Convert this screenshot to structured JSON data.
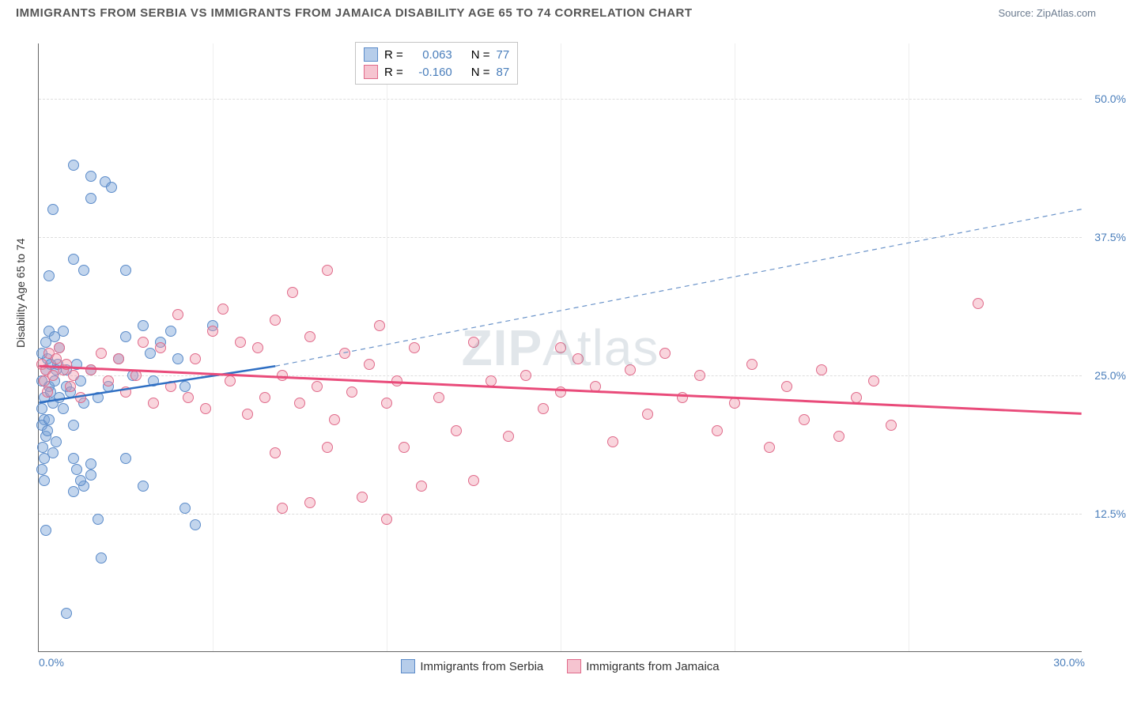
{
  "title": "IMMIGRANTS FROM SERBIA VS IMMIGRANTS FROM JAMAICA DISABILITY AGE 65 TO 74 CORRELATION CHART",
  "source_label": "Source: ZipAtlas.com",
  "yaxis_label": "Disability Age 65 to 74",
  "watermark_zip": "ZIP",
  "watermark_atlas": "Atlas",
  "chart": {
    "type": "scatter",
    "xlim": [
      0,
      30
    ],
    "ylim": [
      0,
      55
    ],
    "background_color": "#ffffff",
    "grid_color": "#dddddd",
    "ygrid_values": [
      12.5,
      25.0,
      37.5,
      50.0
    ],
    "ygrid_labels": [
      "12.5%",
      "25.0%",
      "37.5%",
      "50.0%"
    ],
    "xgrid_values": [
      5,
      10,
      15,
      20,
      25
    ],
    "xtick_left_label": "0.0%",
    "xtick_right_label": "30.0%",
    "series": [
      {
        "name": "Immigrants from Serbia",
        "fill_color": "rgba(119,162,216,0.45)",
        "stroke_color": "#5b8bc9",
        "swatch_fill": "#b6cdea",
        "swatch_border": "#5b8bc9",
        "R_label": "0.063",
        "N_label": "77",
        "trend": {
          "x1": 0,
          "y1": 22.5,
          "x2": 6.8,
          "y2": 25.8,
          "color": "#2f6fc3",
          "width": 2.5,
          "dash": "none"
        },
        "trend_ext": {
          "x1": 6.8,
          "y1": 25.8,
          "x2": 30,
          "y2": 40.0,
          "color": "#6a93c9",
          "width": 1.2,
          "dash": "6 5"
        },
        "points": [
          [
            0.1,
            24.5
          ],
          [
            0.15,
            23.0
          ],
          [
            0.2,
            25.5
          ],
          [
            0.1,
            22.0
          ],
          [
            0.25,
            26.5
          ],
          [
            0.15,
            21.0
          ],
          [
            0.3,
            24.0
          ],
          [
            0.1,
            20.5
          ],
          [
            0.2,
            19.5
          ],
          [
            0.35,
            23.5
          ],
          [
            0.12,
            18.5
          ],
          [
            0.25,
            20.0
          ],
          [
            0.4,
            22.5
          ],
          [
            0.15,
            17.5
          ],
          [
            0.3,
            21.0
          ],
          [
            0.1,
            27.0
          ],
          [
            0.45,
            24.5
          ],
          [
            0.2,
            28.0
          ],
          [
            0.5,
            25.5
          ],
          [
            0.6,
            23.0
          ],
          [
            0.1,
            16.5
          ],
          [
            0.7,
            22.0
          ],
          [
            0.3,
            29.0
          ],
          [
            0.8,
            24.0
          ],
          [
            0.9,
            23.5
          ],
          [
            1.0,
            20.5
          ],
          [
            0.15,
            15.5
          ],
          [
            1.1,
            26.0
          ],
          [
            1.2,
            24.5
          ],
          [
            1.3,
            22.5
          ],
          [
            1.5,
            25.5
          ],
          [
            0.4,
            18.0
          ],
          [
            1.7,
            23.0
          ],
          [
            0.5,
            19.0
          ],
          [
            2.0,
            24.0
          ],
          [
            1.0,
            35.5
          ],
          [
            1.3,
            34.5
          ],
          [
            2.3,
            26.5
          ],
          [
            1.0,
            44.0
          ],
          [
            1.5,
            43.0
          ],
          [
            2.5,
            28.5
          ],
          [
            1.5,
            41.0
          ],
          [
            1.9,
            42.5
          ],
          [
            0.4,
            40.0
          ],
          [
            0.3,
            34.0
          ],
          [
            2.7,
            25.0
          ],
          [
            2.1,
            42.0
          ],
          [
            3.0,
            29.5
          ],
          [
            2.5,
            34.5
          ],
          [
            3.2,
            27.0
          ],
          [
            3.5,
            28.0
          ],
          [
            3.3,
            24.5
          ],
          [
            3.8,
            29.0
          ],
          [
            4.0,
            26.5
          ],
          [
            4.2,
            24.0
          ],
          [
            1.3,
            15.0
          ],
          [
            1.5,
            16.0
          ],
          [
            1.5,
            17.0
          ],
          [
            1.0,
            14.5
          ],
          [
            2.5,
            17.5
          ],
          [
            1.0,
            17.5
          ],
          [
            1.1,
            16.5
          ],
          [
            1.2,
            15.5
          ],
          [
            3.0,
            15.0
          ],
          [
            4.5,
            11.5
          ],
          [
            4.2,
            13.0
          ],
          [
            1.8,
            8.5
          ],
          [
            0.8,
            3.5
          ],
          [
            0.2,
            11.0
          ],
          [
            1.7,
            12.0
          ],
          [
            0.8,
            25.5
          ],
          [
            0.6,
            27.5
          ],
          [
            0.55,
            26.0
          ],
          [
            0.45,
            28.5
          ],
          [
            0.35,
            26.0
          ],
          [
            0.7,
            29.0
          ],
          [
            5.0,
            29.5
          ]
        ]
      },
      {
        "name": "Immigrants from Jamaica",
        "fill_color": "rgba(240,150,170,0.40)",
        "stroke_color": "#e06a8a",
        "swatch_fill": "#f6c4d0",
        "swatch_border": "#e06a8a",
        "R_label": "-0.160",
        "N_label": "87",
        "trend": {
          "x1": 0,
          "y1": 25.8,
          "x2": 30,
          "y2": 21.5,
          "color": "#e94b7a",
          "width": 3,
          "dash": "none"
        },
        "points": [
          [
            0.1,
            26.0
          ],
          [
            0.2,
            25.5
          ],
          [
            0.3,
            27.0
          ],
          [
            0.15,
            24.5
          ],
          [
            0.4,
            25.0
          ],
          [
            0.5,
            26.5
          ],
          [
            0.25,
            23.5
          ],
          [
            0.6,
            27.5
          ],
          [
            0.7,
            25.5
          ],
          [
            0.8,
            26.0
          ],
          [
            0.9,
            24.0
          ],
          [
            1.0,
            25.0
          ],
          [
            1.2,
            23.0
          ],
          [
            1.5,
            25.5
          ],
          [
            1.8,
            27.0
          ],
          [
            2.0,
            24.5
          ],
          [
            2.3,
            26.5
          ],
          [
            2.5,
            23.5
          ],
          [
            2.8,
            25.0
          ],
          [
            3.0,
            28.0
          ],
          [
            3.3,
            22.5
          ],
          [
            3.5,
            27.5
          ],
          [
            3.8,
            24.0
          ],
          [
            4.0,
            30.5
          ],
          [
            4.3,
            23.0
          ],
          [
            4.5,
            26.5
          ],
          [
            4.8,
            22.0
          ],
          [
            5.0,
            29.0
          ],
          [
            5.3,
            31.0
          ],
          [
            5.5,
            24.5
          ],
          [
            5.8,
            28.0
          ],
          [
            6.0,
            21.5
          ],
          [
            6.3,
            27.5
          ],
          [
            6.5,
            23.0
          ],
          [
            6.8,
            30.0
          ],
          [
            7.0,
            25.0
          ],
          [
            7.3,
            32.5
          ],
          [
            7.5,
            22.5
          ],
          [
            7.8,
            28.5
          ],
          [
            8.0,
            24.0
          ],
          [
            8.3,
            34.5
          ],
          [
            8.5,
            21.0
          ],
          [
            8.8,
            27.0
          ],
          [
            9.0,
            23.5
          ],
          [
            9.3,
            14.0
          ],
          [
            9.5,
            26.0
          ],
          [
            9.8,
            29.5
          ],
          [
            10.0,
            22.5
          ],
          [
            10.3,
            24.5
          ],
          [
            10.5,
            18.5
          ],
          [
            10.8,
            27.5
          ],
          [
            11.0,
            15.0
          ],
          [
            11.5,
            23.0
          ],
          [
            12.0,
            20.0
          ],
          [
            12.5,
            28.0
          ],
          [
            13.0,
            24.5
          ],
          [
            13.5,
            19.5
          ],
          [
            14.0,
            25.0
          ],
          [
            14.5,
            22.0
          ],
          [
            15.0,
            23.5
          ],
          [
            15.5,
            26.5
          ],
          [
            16.0,
            24.0
          ],
          [
            16.5,
            19.0
          ],
          [
            17.0,
            25.5
          ],
          [
            17.5,
            21.5
          ],
          [
            18.0,
            27.0
          ],
          [
            18.5,
            23.0
          ],
          [
            19.0,
            25.0
          ],
          [
            19.5,
            20.0
          ],
          [
            20.0,
            22.5
          ],
          [
            20.5,
            26.0
          ],
          [
            21.0,
            18.5
          ],
          [
            21.5,
            24.0
          ],
          [
            22.0,
            21.0
          ],
          [
            22.5,
            25.5
          ],
          [
            23.0,
            19.5
          ],
          [
            23.5,
            23.0
          ],
          [
            24.0,
            24.5
          ],
          [
            24.5,
            20.5
          ],
          [
            10.0,
            12.0
          ],
          [
            7.8,
            13.5
          ],
          [
            12.5,
            15.5
          ],
          [
            7.0,
            13.0
          ],
          [
            6.8,
            18.0
          ],
          [
            8.3,
            18.5
          ],
          [
            27.0,
            31.5
          ],
          [
            15,
            27.5
          ]
        ]
      }
    ]
  },
  "top_legend": {
    "r_prefix": "R  =",
    "n_prefix": "N  ="
  }
}
